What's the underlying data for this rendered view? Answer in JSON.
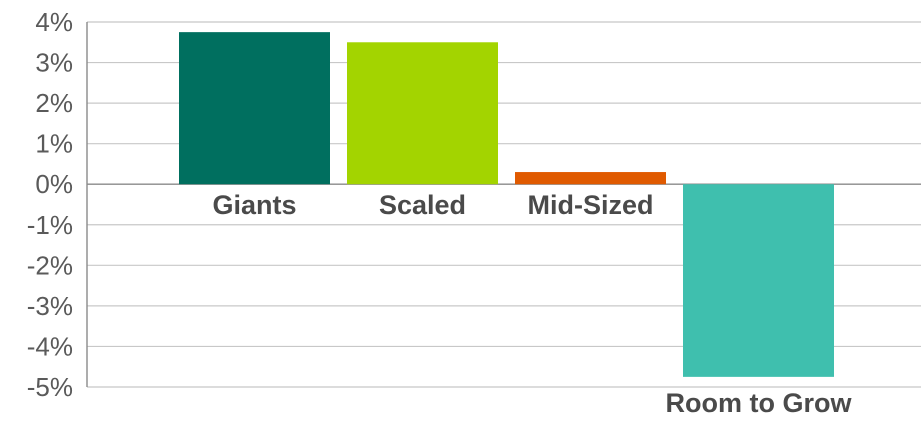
{
  "chart_data": {
    "type": "bar",
    "title": "",
    "xlabel": "",
    "ylabel": "",
    "categories": [
      "Giants",
      "Scaled",
      "Mid-Sized",
      "Room to Grow"
    ],
    "values": [
      3.75,
      3.5,
      0.3,
      -4.75
    ],
    "colors": [
      "#006f5f",
      "#a3d400",
      "#e05a00",
      "#3fbfae"
    ],
    "ylim": [
      -5,
      4
    ],
    "yticks": [
      4,
      3,
      2,
      1,
      0,
      -1,
      -2,
      -3,
      -4,
      -5
    ],
    "ytick_labels": [
      "4%",
      "3%",
      "2%",
      "1%",
      "0%",
      "-1%",
      "-2%",
      "-3%",
      "-4%",
      "-5%"
    ],
    "grid": true,
    "legend": "none"
  }
}
